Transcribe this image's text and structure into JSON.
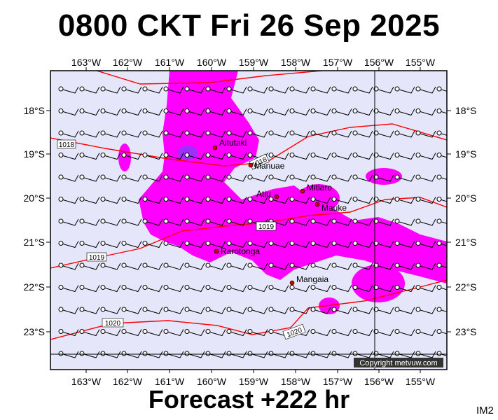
{
  "header": {
    "title": "0800 CKT Fri 26 Sep 2025"
  },
  "footer": {
    "forecast": "Forecast +222 hr",
    "code": "IM2"
  },
  "map": {
    "lon_labels": [
      "163°W",
      "162°W",
      "161°W",
      "160°W",
      "159°W",
      "158°W",
      "157°W",
      "156°W",
      "155°W"
    ],
    "lat_labels": [
      "18°S",
      "19°S",
      "20°S",
      "21°S",
      "22°S",
      "23°S"
    ],
    "places": [
      {
        "name": "Aitutaki"
      },
      {
        "name": "Manuae"
      },
      {
        "name": "Mitiaro"
      },
      {
        "name": "Atiu"
      },
      {
        "name": "Mauke"
      },
      {
        "name": "Rarotonga"
      },
      {
        "name": "Mangaia"
      }
    ],
    "isobar_labels": [
      "1018",
      "1018",
      "1019",
      "1019",
      "1020",
      "1020"
    ],
    "copyright": "Copyright metvuw.com"
  },
  "colors": {
    "background": "#e6e6fa",
    "rain": "#ff00ff",
    "heavy_rain": "#9b30ff",
    "isobar": "#ff0000"
  }
}
